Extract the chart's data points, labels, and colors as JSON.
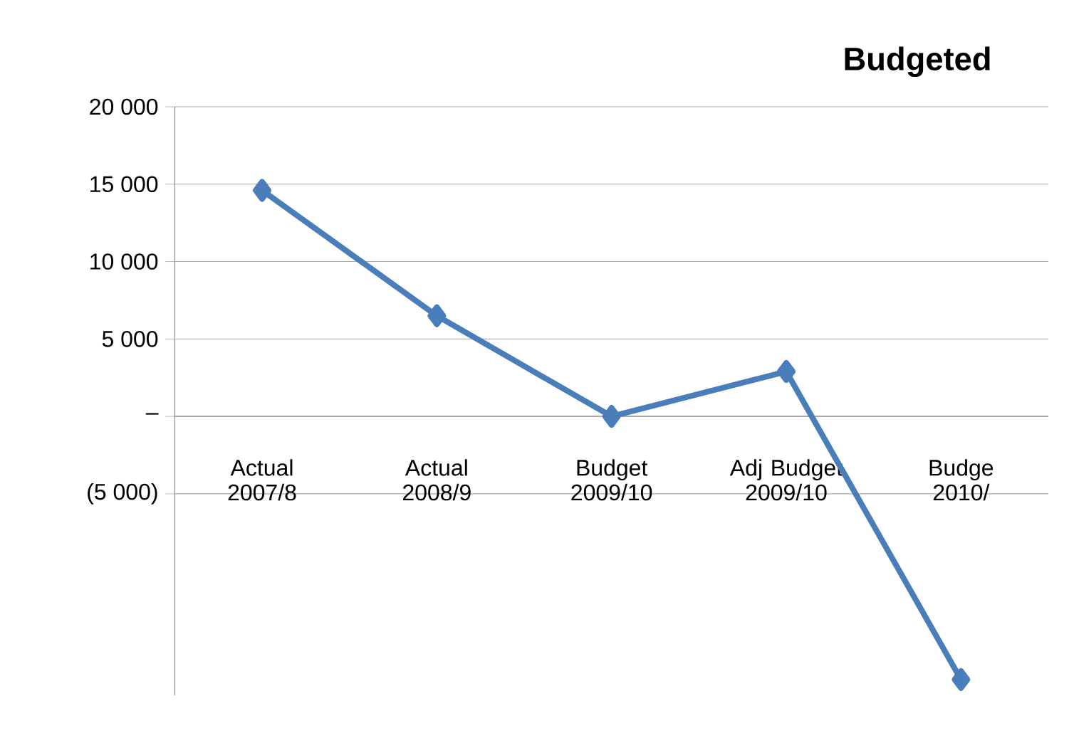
{
  "chart_data": {
    "type": "line",
    "title": "Budgeted",
    "categories": [
      "Actual 2007/8",
      "Actual 2008/9",
      "Budget 2009/10",
      "Adj Budget 2009/10",
      "Budge 2010/"
    ],
    "series": [
      {
        "color": "#4a7ebb",
        "values": [
          14600,
          6500,
          0,
          2900,
          -17000
        ]
      }
    ],
    "ylim": [
      -18000,
      20000
    ],
    "yticks": [
      {
        "value": 20000,
        "label": "20 000"
      },
      {
        "value": 15000,
        "label": "15 000"
      },
      {
        "value": 10000,
        "label": "10 000"
      },
      {
        "value": 5000,
        "label": "5 000"
      },
      {
        "value": 0,
        "label": "–"
      },
      {
        "value": -5000,
        "label": "(5 000)"
      }
    ],
    "grid": "y",
    "marker": "diamond",
    "line_style": "solid"
  }
}
